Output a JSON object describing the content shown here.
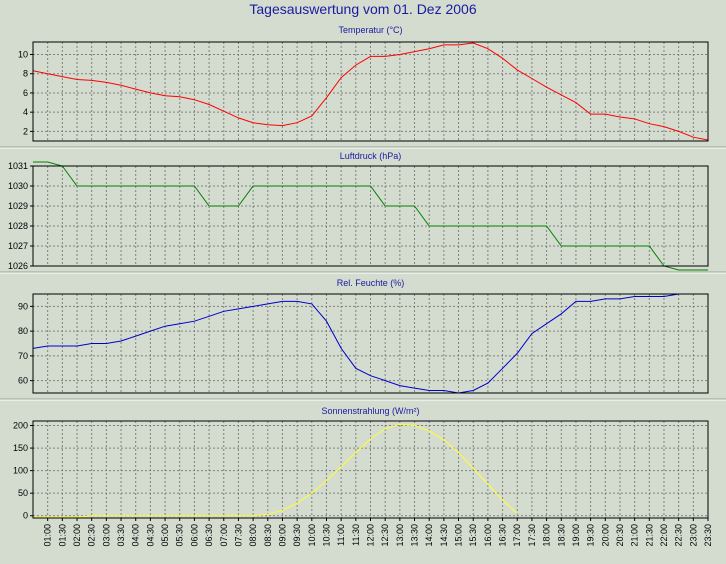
{
  "title": "Tagesauswertung vom 01. Dez 2006",
  "chart_data": [
    {
      "type": "line",
      "title": "Temperatur (°C)",
      "color": "#ff0000",
      "ylim": [
        1,
        11.3
      ],
      "yticks": [
        2,
        4,
        6,
        8,
        10
      ],
      "x": [
        "00:30",
        "01:00",
        "01:30",
        "02:00",
        "02:30",
        "03:00",
        "03:30",
        "04:00",
        "04:30",
        "05:00",
        "05:30",
        "06:00",
        "06:30",
        "07:00",
        "07:30",
        "08:00",
        "08:30",
        "09:00",
        "09:30",
        "10:00",
        "10:30",
        "11:00",
        "11:30",
        "12:00",
        "12:30",
        "13:00",
        "13:30",
        "14:00",
        "14:30",
        "15:00",
        "15:30",
        "16:00",
        "16:30",
        "17:00",
        "17:30",
        "18:00",
        "18:30",
        "19:00",
        "19:30",
        "20:00",
        "20:30",
        "21:00",
        "21:30",
        "22:00",
        "22:30",
        "23:00",
        "23:30"
      ],
      "values": [
        8.3,
        8.0,
        7.7,
        7.4,
        7.3,
        7.1,
        6.8,
        6.4,
        6.0,
        5.7,
        5.6,
        5.3,
        4.8,
        4.1,
        3.4,
        2.9,
        2.7,
        2.6,
        2.9,
        3.6,
        5.5,
        7.6,
        8.9,
        9.8,
        9.8,
        10.0,
        10.3,
        10.6,
        11.0,
        11.0,
        11.2,
        10.6,
        9.6,
        8.4,
        7.5,
        6.6,
        5.8,
        5.0,
        3.8,
        3.8,
        3.5,
        3.3,
        2.8,
        2.5,
        2.0,
        1.4,
        1.1
      ]
    },
    {
      "type": "line",
      "title": "Luftdruck (hPa)",
      "color": "#008000",
      "ylim": [
        1026,
        1031
      ],
      "yticks": [
        1026,
        1027,
        1028,
        1029,
        1030,
        1031
      ],
      "x": [
        "00:30",
        "01:00",
        "01:30",
        "02:00",
        "02:30",
        "03:00",
        "03:30",
        "04:00",
        "04:30",
        "05:00",
        "05:30",
        "06:00",
        "06:30",
        "07:00",
        "07:30",
        "08:00",
        "08:30",
        "09:00",
        "09:30",
        "10:00",
        "10:30",
        "11:00",
        "11:30",
        "12:00",
        "12:30",
        "13:00",
        "13:30",
        "14:00",
        "14:30",
        "15:00",
        "15:30",
        "16:00",
        "16:30",
        "17:00",
        "17:30",
        "18:00",
        "18:30",
        "19:00",
        "19:30",
        "20:00",
        "20:30",
        "21:00",
        "21:30",
        "22:00",
        "22:30",
        "23:00",
        "23:30"
      ],
      "values": [
        1031.2,
        1031.2,
        1031,
        1030,
        1030,
        1030,
        1030,
        1030,
        1030,
        1030,
        1030,
        1030,
        1029,
        1029,
        1029,
        1030,
        1030,
        1030,
        1030,
        1030,
        1030,
        1030,
        1030,
        1030,
        1029,
        1029,
        1029,
        1028,
        1028,
        1028,
        1028,
        1028,
        1028,
        1028,
        1028,
        1028,
        1027,
        1027,
        1027,
        1027,
        1027,
        1027,
        1027,
        1026,
        1025.8,
        1025.8,
        1025.8
      ]
    },
    {
      "type": "line",
      "title": "Rel. Feuchte (%)",
      "color": "#0000cc",
      "ylim": [
        55,
        95
      ],
      "yticks": [
        60,
        70,
        80,
        90
      ],
      "x": [
        "00:30",
        "01:00",
        "01:30",
        "02:00",
        "02:30",
        "03:00",
        "03:30",
        "04:00",
        "04:30",
        "05:00",
        "05:30",
        "06:00",
        "06:30",
        "07:00",
        "07:30",
        "08:00",
        "08:30",
        "09:00",
        "09:30",
        "10:00",
        "10:30",
        "11:00",
        "11:30",
        "12:00",
        "12:30",
        "13:00",
        "13:30",
        "14:00",
        "14:30",
        "15:00",
        "15:30",
        "16:00",
        "16:30",
        "17:00",
        "17:30",
        "18:00",
        "18:30",
        "19:00",
        "19:30",
        "20:00",
        "20:30",
        "21:00",
        "21:30",
        "22:00",
        "22:30",
        "23:00",
        "23:30"
      ],
      "values": [
        73,
        74,
        74,
        74,
        75,
        75,
        76,
        78,
        80,
        82,
        83,
        84,
        86,
        88,
        89,
        90,
        91,
        92,
        92,
        91,
        84,
        73,
        65,
        62,
        60,
        58,
        57,
        56,
        56,
        55,
        56,
        59,
        65,
        71,
        79,
        83,
        87,
        92,
        92,
        93,
        93,
        94,
        94,
        94,
        95,
        95,
        95
      ]
    },
    {
      "type": "line",
      "title": "Sonnenstrahlung (W/m²)",
      "color": "#ffff33",
      "ylim": [
        -5,
        210
      ],
      "yticks": [
        0,
        50,
        100,
        150,
        200
      ],
      "x": [
        "00:30",
        "01:00",
        "01:30",
        "02:00",
        "02:30",
        "03:00",
        "03:30",
        "04:00",
        "04:30",
        "05:00",
        "05:30",
        "06:00",
        "06:30",
        "07:00",
        "07:30",
        "08:00",
        "08:30",
        "09:00",
        "09:30",
        "10:00",
        "10:30",
        "11:00",
        "11:30",
        "12:00",
        "12:30",
        "13:00",
        "13:30",
        "14:00",
        "14:30",
        "15:00",
        "15:30",
        "16:00",
        "16:30",
        "17:00"
      ],
      "values": [
        -3,
        -3,
        -3,
        -3,
        0,
        0,
        0,
        0,
        0,
        0,
        0,
        0,
        0,
        0,
        0,
        0,
        3,
        12,
        28,
        50,
        78,
        108,
        140,
        170,
        193,
        203,
        200,
        188,
        168,
        140,
        105,
        70,
        35,
        5
      ]
    }
  ],
  "xticks": [
    "01:00",
    "01:30",
    "02:00",
    "02:30",
    "03:00",
    "03:30",
    "04:00",
    "04:30",
    "05:00",
    "05:30",
    "06:00",
    "06:30",
    "07:00",
    "07:30",
    "08:00",
    "08:30",
    "09:00",
    "09:30",
    "10:00",
    "10:30",
    "11:00",
    "11:30",
    "12:00",
    "12:30",
    "13:00",
    "13:30",
    "14:00",
    "14:30",
    "15:00",
    "15:30",
    "16:00",
    "16:30",
    "17:00",
    "17:30",
    "18:00",
    "18:30",
    "19:00",
    "19:30",
    "20:00",
    "20:30",
    "21:00",
    "21:30",
    "22:00",
    "22:30",
    "23:00",
    "23:30"
  ]
}
